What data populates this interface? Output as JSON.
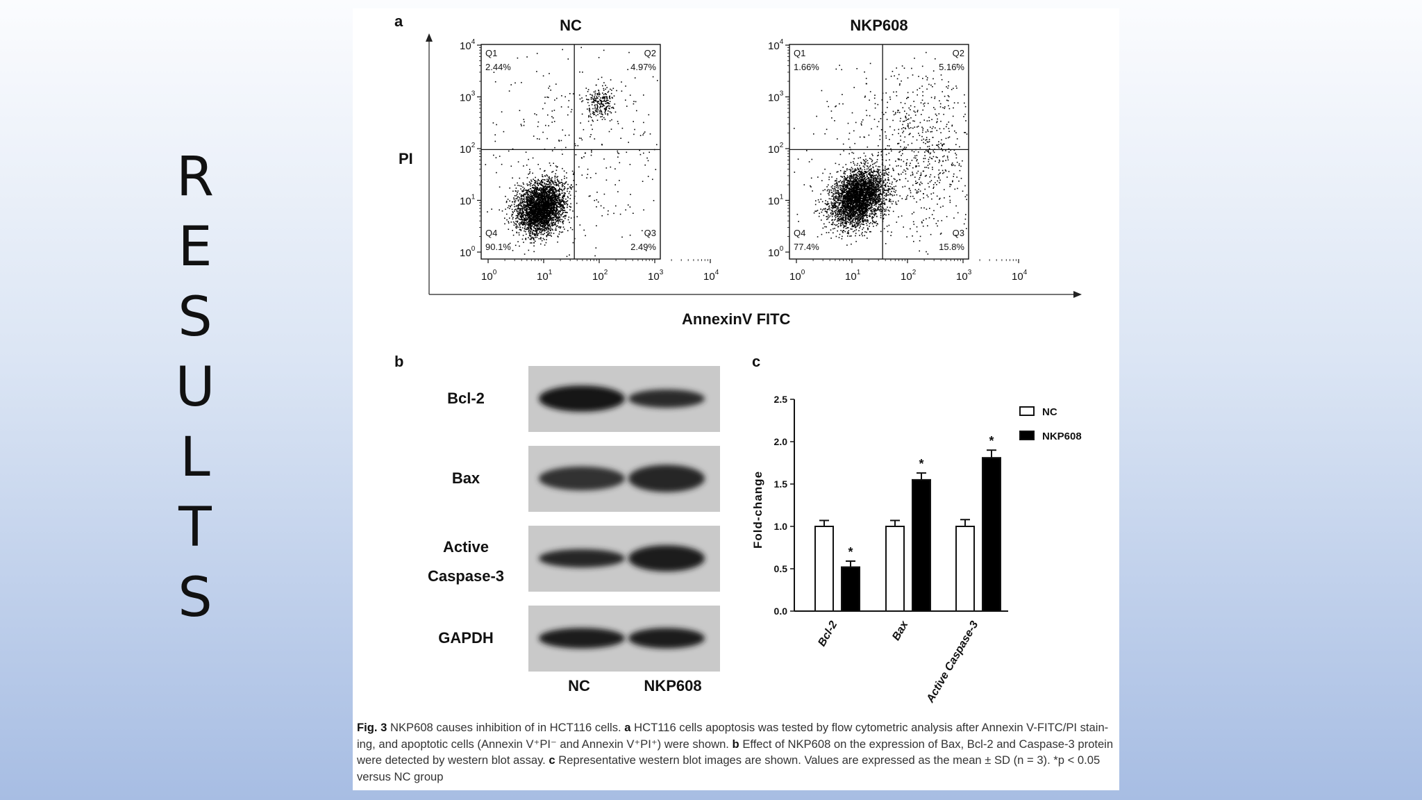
{
  "slide": {
    "title_letters": [
      "R",
      "E",
      "S",
      "U",
      "L",
      "T",
      "S"
    ]
  },
  "panel_a": {
    "label": "a",
    "y_axis_label": "PI",
    "x_axis_label": "AnnexinV FITC",
    "tick_exponents": [
      "0",
      "1",
      "2",
      "3",
      "4"
    ],
    "tick_base": "10",
    "plots": [
      {
        "title": "NC",
        "quadrants": [
          {
            "id": "Q1",
            "value": "2.44%"
          },
          {
            "id": "Q2",
            "value": "4.97%"
          },
          {
            "id": "Q3",
            "value": "2.49%"
          },
          {
            "id": "Q4",
            "value": "90.1%"
          }
        ]
      },
      {
        "title": "NKP608",
        "quadrants": [
          {
            "id": "Q1",
            "value": "1.66%"
          },
          {
            "id": "Q2",
            "value": "5.16%"
          },
          {
            "id": "Q3",
            "value": "15.8%"
          },
          {
            "id": "Q4",
            "value": "77.4%"
          }
        ]
      }
    ]
  },
  "panel_b": {
    "label": "b",
    "rows": [
      {
        "label_lines": [
          "Bcl-2"
        ],
        "intensity": [
          0.95,
          0.7
        ],
        "thickness": [
          0.8,
          0.45
        ]
      },
      {
        "label_lines": [
          "Bax"
        ],
        "intensity": [
          0.6,
          0.72
        ],
        "thickness": [
          0.7,
          0.85
        ]
      },
      {
        "label_lines": [
          "Active",
          "Caspase-3"
        ],
        "intensity": [
          0.75,
          0.9
        ],
        "thickness": [
          0.45,
          0.8
        ]
      },
      {
        "label_lines": [
          "GAPDH"
        ],
        "intensity": [
          0.9,
          0.9
        ],
        "thickness": [
          0.55,
          0.55
        ]
      }
    ],
    "lanes": [
      "NC",
      "NKP608"
    ]
  },
  "panel_c": {
    "label": "c",
    "chart_data": {
      "type": "bar",
      "categories": [
        "Bcl-2",
        "Bax",
        "Active Caspase-3"
      ],
      "series": [
        {
          "name": "NC",
          "values": [
            1.0,
            1.0,
            1.0
          ],
          "errors": [
            0.07,
            0.07,
            0.08
          ],
          "color": "#ffffff"
        },
        {
          "name": "NKP608",
          "values": [
            0.52,
            1.55,
            1.81
          ],
          "errors": [
            0.07,
            0.08,
            0.09
          ],
          "color": "#000000"
        }
      ],
      "significance": [
        "*",
        "*",
        "*"
      ],
      "ylabel": "Fold-change",
      "ylim": [
        0,
        2.5
      ],
      "yticks": [
        "0.0",
        "0.5",
        "1.0",
        "1.5",
        "2.0",
        "2.5"
      ],
      "legend": "top-right"
    }
  },
  "caption": {
    "fig_label": "Fig. 3",
    "part1": "NKP608 causes inhibition of in HCT116 cells.",
    "a_label": "a",
    "part2": "HCT116 cells apoptosis was tested by flow cytometric analysis after Annexin V-FITC/PI stain-ing, and apoptotic cells (Annexin V⁺PI⁻ and Annexin V⁺PI⁺) were shown.",
    "b_label": "b",
    "part3": "Effect of NKP608 on the expression of Bax, Bcl-2 and Caspase-3 protein were detected by western blot assay.",
    "c_label": "c",
    "part4": "Representative western blot images are shown. Values are expressed as the mean ± SD (n = 3). *p < 0.05 versus NC group"
  }
}
